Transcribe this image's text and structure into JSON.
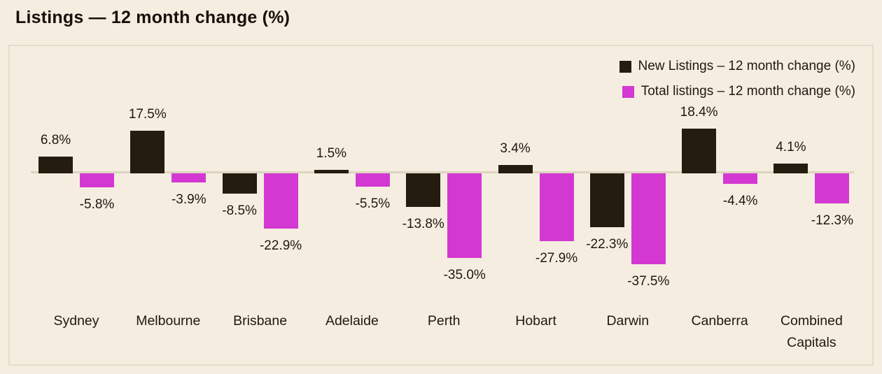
{
  "title": "Listings — 12 month change (%)",
  "legend": {
    "items": [
      {
        "label": "New Listings – 12 month change (%)",
        "color": "#251c10"
      },
      {
        "label": "Total listings – 12 month change (%)",
        "color": "#d438d2"
      }
    ]
  },
  "chart_data": {
    "type": "bar",
    "title": "Listings — 12 month change (%)",
    "categories": [
      "Sydney",
      "Melbourne",
      "Brisbane",
      "Adelaide",
      "Perth",
      "Hobart",
      "Darwin",
      "Canberra",
      "Combined Capitals"
    ],
    "series": [
      {
        "name": "New Listings – 12 month change (%)",
        "color": "#251c10",
        "values": [
          6.8,
          17.5,
          -8.5,
          1.5,
          -13.8,
          3.4,
          -22.3,
          18.4,
          4.1
        ]
      },
      {
        "name": "Total listings – 12 month change (%)",
        "color": "#d438d2",
        "values": [
          -5.8,
          -3.9,
          -22.9,
          -5.5,
          -35.0,
          -27.9,
          -37.5,
          -4.4,
          -12.3
        ]
      }
    ],
    "value_label_format": "{value}%",
    "value_label_decimals": 1,
    "xlabel": "",
    "ylabel": "",
    "ylim": [
      -45,
      25
    ],
    "grid": false,
    "legend_position": "top-right",
    "colors": {
      "background": "#f5eee0",
      "panel_border": "#e4dccb",
      "zero_line": "#ddd3c1",
      "text": "#1d1812"
    }
  }
}
